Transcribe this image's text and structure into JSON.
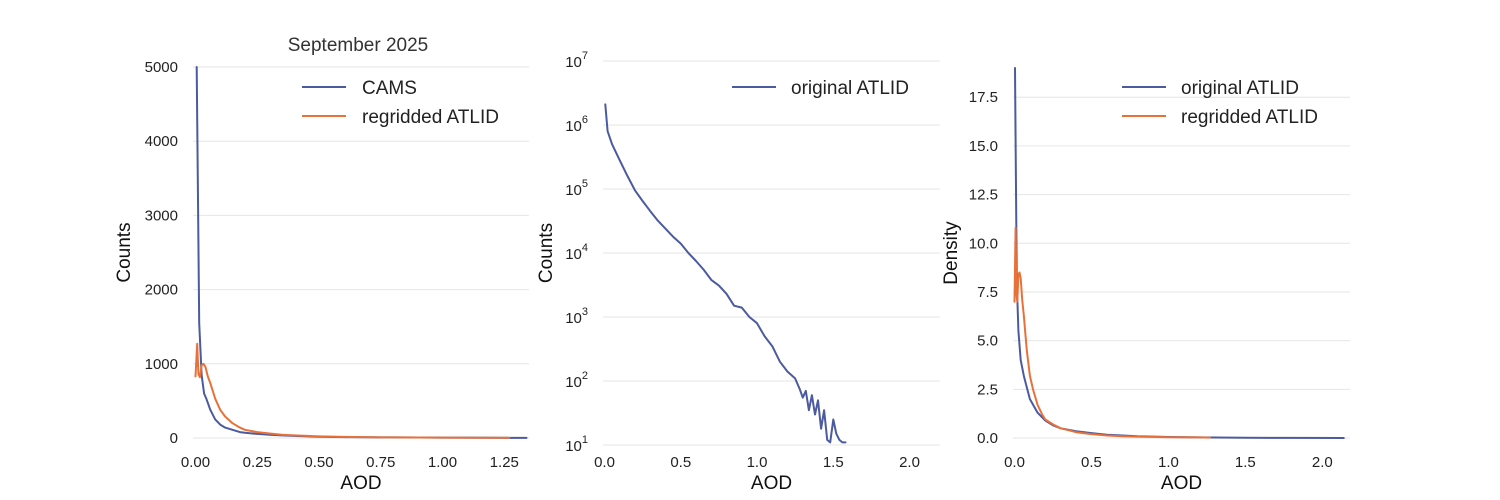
{
  "figure": {
    "title": "September 2025"
  },
  "chart_data": [
    {
      "type": "line",
      "title": "September 2025",
      "xlabel": "AOD",
      "ylabel": "Counts",
      "xlim": [
        -0.01,
        1.35
      ],
      "ylim": [
        0,
        5000
      ],
      "yscale": "linear",
      "grid": "y",
      "legend": "top-right",
      "xticks": [
        "0.00",
        "0.25",
        "0.50",
        "0.75",
        "1.00",
        "1.25"
      ],
      "xtick_values": [
        0,
        0.25,
        0.5,
        0.75,
        1.0,
        1.25
      ],
      "yticks": [
        "0",
        "1000",
        "2000",
        "3000",
        "4000",
        "5000"
      ],
      "ytick_values": [
        0,
        1000,
        2000,
        3000,
        4000,
        5000
      ],
      "series": [
        {
          "name": "CAMS",
          "color": "#4c5a9f",
          "x": [
            0.005,
            0.015,
            0.025,
            0.035,
            0.045,
            0.06,
            0.08,
            0.1,
            0.12,
            0.15,
            0.18,
            0.2,
            0.25,
            0.3,
            0.35,
            0.4,
            0.5,
            0.6,
            0.7,
            0.8,
            1.0,
            1.2,
            1.34
          ],
          "y": [
            5000,
            1550,
            850,
            600,
            520,
            380,
            250,
            180,
            140,
            110,
            80,
            70,
            55,
            45,
            35,
            28,
            18,
            12,
            10,
            8,
            5,
            3,
            2
          ]
        },
        {
          "name": "regridded ATLID",
          "color": "#e8713a",
          "x": [
            0.0,
            0.007,
            0.012,
            0.018,
            0.025,
            0.032,
            0.04,
            0.05,
            0.06,
            0.08,
            0.1,
            0.12,
            0.15,
            0.18,
            0.2,
            0.25,
            0.3,
            0.35,
            0.4,
            0.5,
            0.6,
            0.7,
            0.8,
            1.0,
            1.2,
            1.27
          ],
          "y": [
            830,
            1270,
            860,
            820,
            980,
            1000,
            960,
            830,
            740,
            530,
            380,
            290,
            200,
            140,
            110,
            80,
            60,
            45,
            35,
            22,
            15,
            10,
            8,
            5,
            3,
            3
          ]
        }
      ]
    },
    {
      "type": "line",
      "xlabel": "AOD",
      "ylabel": "Counts",
      "xlim": [
        -0.01,
        2.2
      ],
      "ylim": [
        10,
        10000000
      ],
      "yscale": "log",
      "grid": "y",
      "legend": "top-right",
      "xticks": [
        "0.0",
        "0.5",
        "1.0",
        "1.5",
        "2.0"
      ],
      "xtick_values": [
        0,
        0.5,
        1.0,
        1.5,
        2.0
      ],
      "yticks": [
        {
          "base": "10",
          "exp": "1"
        },
        {
          "base": "10",
          "exp": "2"
        },
        {
          "base": "10",
          "exp": "3"
        },
        {
          "base": "10",
          "exp": "4"
        },
        {
          "base": "10",
          "exp": "5"
        },
        {
          "base": "10",
          "exp": "6"
        },
        {
          "base": "10",
          "exp": "7"
        }
      ],
      "ytick_values": [
        10,
        100,
        1000,
        10000,
        100000,
        1000000,
        10000000
      ],
      "series": [
        {
          "name": "original ATLID",
          "color": "#4c5a9f",
          "x": [
            0.005,
            0.02,
            0.05,
            0.1,
            0.15,
            0.2,
            0.25,
            0.3,
            0.35,
            0.4,
            0.45,
            0.5,
            0.55,
            0.6,
            0.65,
            0.7,
            0.75,
            0.8,
            0.85,
            0.9,
            0.95,
            1.0,
            1.05,
            1.1,
            1.15,
            1.2,
            1.25,
            1.28,
            1.3,
            1.32,
            1.34,
            1.36,
            1.38,
            1.4,
            1.42,
            1.44,
            1.46,
            1.48,
            1.5,
            1.52,
            1.54,
            1.56,
            1.58
          ],
          "y": [
            2100000,
            800000,
            500000,
            280000,
            160000,
            95000,
            65000,
            45000,
            32000,
            24000,
            18000,
            14000,
            10000,
            7500,
            5500,
            3800,
            3100,
            2300,
            1500,
            1400,
            1000,
            800,
            500,
            350,
            200,
            140,
            110,
            75,
            55,
            70,
            35,
            60,
            30,
            50,
            18,
            35,
            12,
            11,
            25,
            15,
            12,
            11,
            11
          ]
        }
      ]
    },
    {
      "type": "line",
      "xlabel": "AOD",
      "ylabel": "Density",
      "xlim": [
        -0.01,
        2.18
      ],
      "ylim": [
        0,
        19
      ],
      "yscale": "linear",
      "grid": "y",
      "legend": "top-right",
      "xticks": [
        "0.0",
        "0.5",
        "1.0",
        "1.5",
        "2.0"
      ],
      "xtick_values": [
        0,
        0.5,
        1.0,
        1.5,
        2.0
      ],
      "yticks": [
        "0.0",
        "2.5",
        "5.0",
        "7.5",
        "10.0",
        "12.5",
        "15.0",
        "17.5"
      ],
      "ytick_values": [
        0,
        2.5,
        5.0,
        7.5,
        10.0,
        12.5,
        15.0,
        17.5
      ],
      "series": [
        {
          "name": "original ATLID",
          "color": "#4c5a9f",
          "x": [
            0.003,
            0.008,
            0.015,
            0.025,
            0.04,
            0.06,
            0.08,
            0.1,
            0.15,
            0.2,
            0.25,
            0.3,
            0.4,
            0.5,
            0.6,
            0.8,
            1.0,
            1.2,
            1.5,
            1.8,
            2.14
          ],
          "y": [
            19,
            14,
            8,
            5.5,
            4,
            3.2,
            2.6,
            2.0,
            1.3,
            0.9,
            0.65,
            0.5,
            0.35,
            0.25,
            0.17,
            0.09,
            0.05,
            0.03,
            0.01,
            0.005,
            0.002
          ]
        },
        {
          "name": "regridded ATLID",
          "color": "#e8713a",
          "x": [
            0.0,
            0.007,
            0.012,
            0.018,
            0.025,
            0.032,
            0.04,
            0.05,
            0.06,
            0.08,
            0.1,
            0.12,
            0.15,
            0.18,
            0.2,
            0.25,
            0.3,
            0.35,
            0.4,
            0.5,
            0.6,
            0.7,
            0.8,
            1.0,
            1.2,
            1.27
          ],
          "y": [
            7.0,
            10.8,
            7.4,
            7.0,
            8.4,
            8.5,
            8.2,
            7.1,
            6.3,
            4.5,
            3.2,
            2.5,
            1.7,
            1.2,
            0.95,
            0.7,
            0.5,
            0.4,
            0.3,
            0.2,
            0.13,
            0.09,
            0.07,
            0.04,
            0.03,
            0.02
          ]
        }
      ]
    }
  ]
}
